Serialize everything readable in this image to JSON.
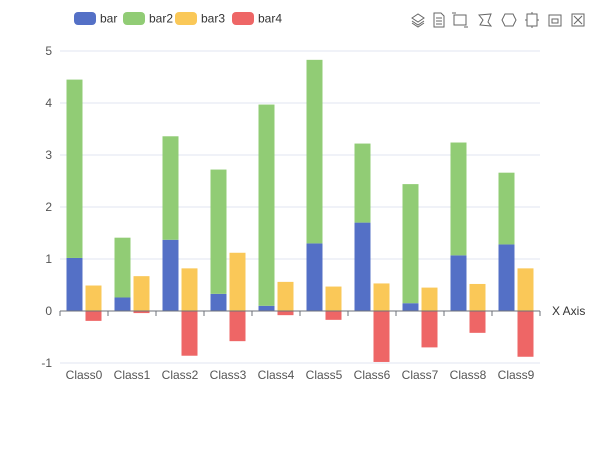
{
  "chart_data": {
    "type": "bar",
    "stacked": true,
    "categories": [
      "Class0",
      "Class1",
      "Class2",
      "Class3",
      "Class4",
      "Class5",
      "Class6",
      "Class7",
      "Class8",
      "Class9"
    ],
    "series": [
      {
        "name": "bar",
        "stack": "one",
        "color": "#5470c6",
        "values": [
          1.02,
          0.26,
          1.37,
          0.33,
          0.1,
          1.3,
          1.7,
          0.15,
          1.07,
          1.28
        ]
      },
      {
        "name": "bar2",
        "stack": "one",
        "color": "#91cc75",
        "values": [
          3.43,
          1.15,
          1.99,
          2.39,
          3.87,
          3.53,
          1.52,
          2.29,
          2.17,
          1.38
        ]
      },
      {
        "name": "bar3",
        "stack": "two",
        "color": "#fac858",
        "values": [
          0.49,
          0.67,
          0.82,
          1.12,
          0.56,
          0.47,
          0.53,
          0.45,
          0.52,
          0.82
        ]
      },
      {
        "name": "bar4",
        "stack": "two",
        "color": "#ee6666",
        "values": [
          -0.19,
          -0.04,
          -0.86,
          -0.58,
          -0.08,
          -0.17,
          -0.98,
          -0.7,
          -0.42,
          -0.88
        ]
      }
    ],
    "ylim": [
      -1,
      5
    ],
    "yticks": [
      -1,
      0,
      1,
      2,
      3,
      4,
      5
    ],
    "xlabel": "X Axis",
    "ylabel": "",
    "grid": true,
    "legend_position": "top-left",
    "toolbox_icons": [
      "stack-icon",
      "data-view-icon",
      "rect-select-icon",
      "lasso-select-icon",
      "keep-selection-icon",
      "clear-selection-icon",
      "restore-icon",
      "save-image-icon"
    ]
  }
}
